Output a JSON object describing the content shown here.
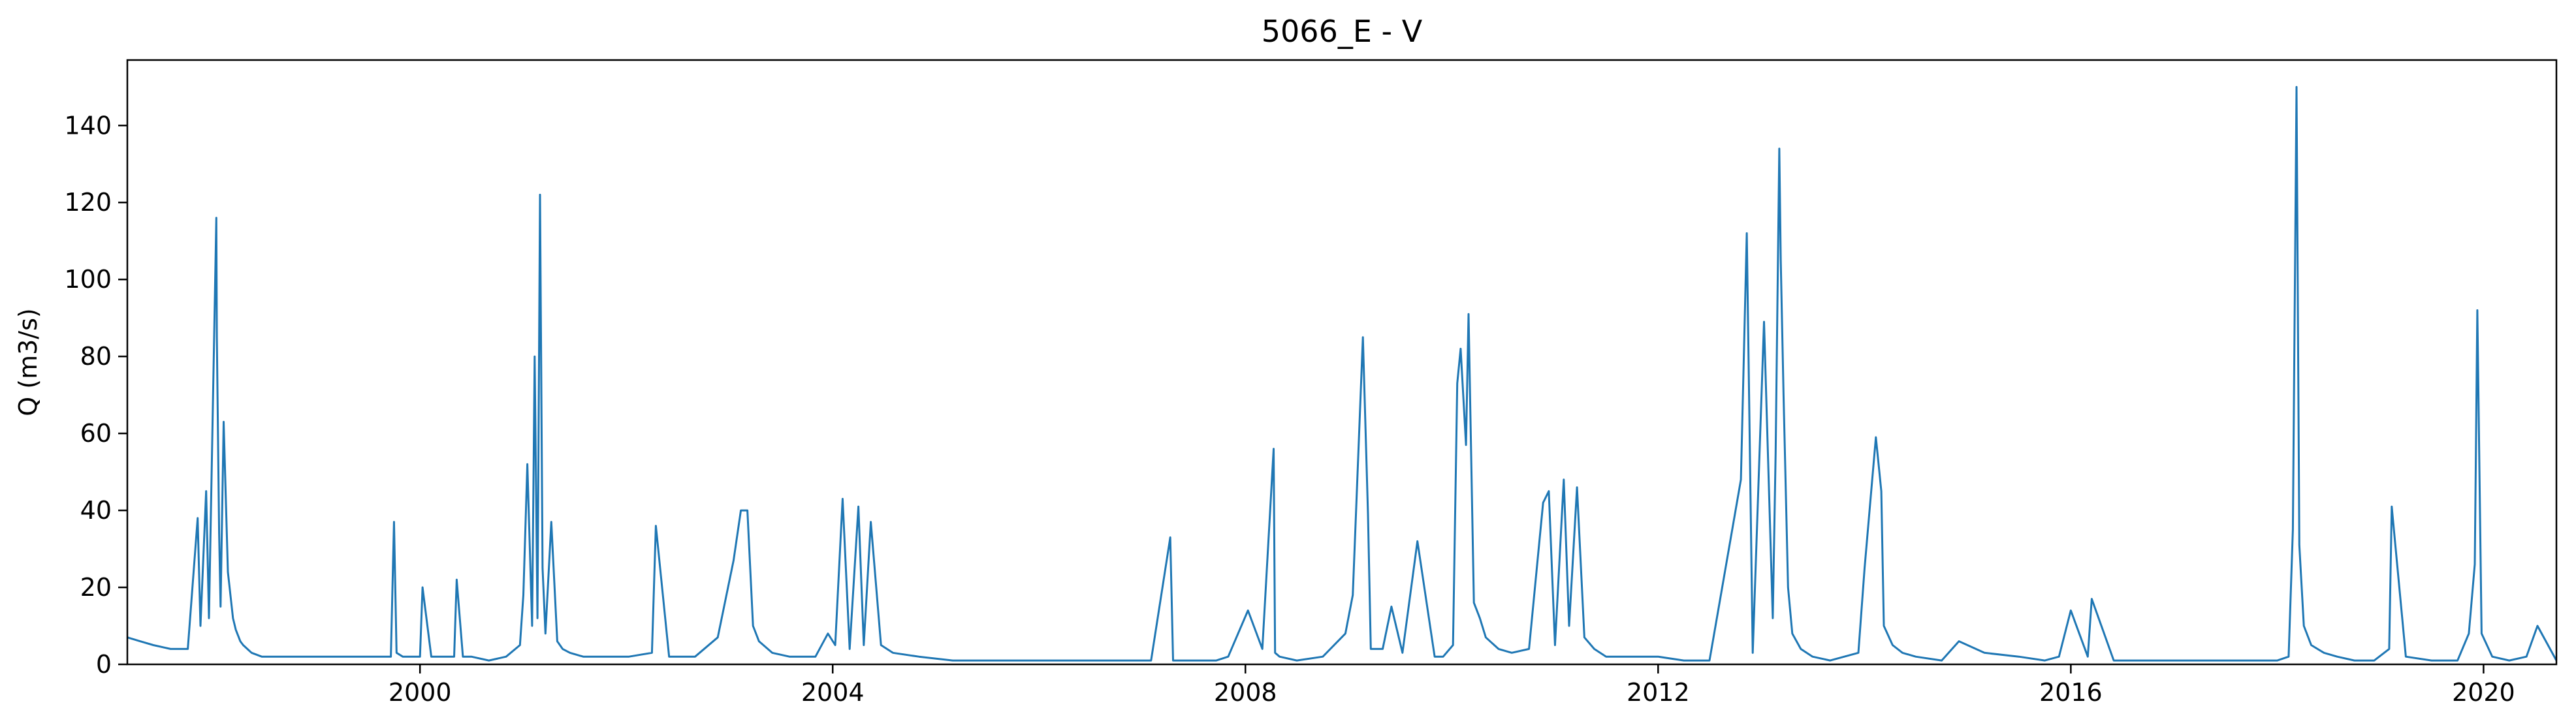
{
  "chart_data": {
    "type": "line",
    "title": "5066_E - V",
    "xlabel": "",
    "ylabel": "Q (m3/s)",
    "xlim": [
      "1997-03-01",
      "2020-09-15"
    ],
    "ylim": [
      0,
      157
    ],
    "x_ticks": [
      "2000",
      "2004",
      "2008",
      "2012",
      "2016",
      "2020"
    ],
    "y_ticks": [
      0,
      20,
      40,
      60,
      80,
      100,
      120,
      140
    ],
    "grid": false,
    "legend": "none",
    "line_color": "#1f77b4",
    "series": [
      {
        "name": "",
        "x": [
          "1997-03-01",
          "1997-04-15",
          "1997-06-01",
          "1997-08-01",
          "1997-10-01",
          "1997-11-05",
          "1997-11-15",
          "1997-12-05",
          "1997-12-15",
          "1998-01-10",
          "1998-01-12",
          "1998-01-20",
          "1998-01-25",
          "1998-02-05",
          "1998-02-20",
          "1998-03-10",
          "1998-03-20",
          "1998-04-05",
          "1998-04-15",
          "1998-05-15",
          "1998-06-20",
          "1998-08-01",
          "1998-10-01",
          "1999-01-15",
          "1999-04-01",
          "1999-07-01",
          "1999-09-20",
          "1999-10-01",
          "1999-10-10",
          "1999-11-01",
          "2000-01-01",
          "2000-01-10",
          "2000-02-10",
          "2000-05-01",
          "2000-05-10",
          "2000-06-01",
          "2000-07-01",
          "2000-09-01",
          "2000-11-01",
          "2000-12-20",
          "2001-01-01",
          "2001-01-15",
          "2001-02-01",
          "2001-02-10",
          "2001-02-20",
          "2001-03-01",
          "2001-03-10",
          "2001-03-20",
          "2001-04-10",
          "2001-05-01",
          "2001-05-20",
          "2001-06-15",
          "2001-08-01",
          "2001-10-01",
          "2002-01-10",
          "2002-04-01",
          "2002-04-15",
          "2002-06-01",
          "2002-09-01",
          "2002-11-20",
          "2003-01-15",
          "2003-02-10",
          "2003-03-05",
          "2003-03-25",
          "2003-04-15",
          "2003-06-01",
          "2003-08-01",
          "2003-11-01",
          "2003-12-15",
          "2004-01-10",
          "2004-02-05",
          "2004-03-01",
          "2004-04-01",
          "2004-04-20",
          "2004-05-15",
          "2004-06-20",
          "2004-08-01",
          "2004-11-01",
          "2005-03-01",
          "2005-07-01",
          "2005-11-01",
          "2006-04-01",
          "2006-08-01",
          "2006-12-01",
          "2007-02-01",
          "2007-04-10",
          "2007-04-20",
          "2007-06-01",
          "2007-09-20",
          "2007-11-01",
          "2008-01-10",
          "2008-03-01",
          "2008-04-10",
          "2008-04-15",
          "2008-05-01",
          "2008-07-01",
          "2008-10-01",
          "2008-12-20",
          "2009-01-15",
          "2009-02-20",
          "2009-03-10",
          "2009-03-20",
          "2009-05-01",
          "2009-06-01",
          "2009-07-10",
          "2009-09-01",
          "2009-11-01",
          "2009-12-01",
          "2010-01-05",
          "2010-01-20",
          "2010-02-01",
          "2010-02-20",
          "2010-03-01",
          "2010-03-20",
          "2010-04-10",
          "2010-05-01",
          "2010-06-15",
          "2010-08-01",
          "2010-10-01",
          "2010-11-20",
          "2010-12-10",
          "2011-01-01",
          "2011-02-01",
          "2011-02-20",
          "2011-03-20",
          "2011-04-15",
          "2011-05-20",
          "2011-07-01",
          "2011-10-01",
          "2012-01-01",
          "2012-04-01",
          "2012-07-01",
          "2012-10-20",
          "2012-11-10",
          "2012-12-01",
          "2013-01-10",
          "2013-02-10",
          "2013-02-20",
          "2013-03-05",
          "2013-03-10",
          "2013-03-20",
          "2013-04-05",
          "2013-04-20",
          "2013-05-20",
          "2013-07-01",
          "2013-09-01",
          "2013-12-10",
          "2014-01-01",
          "2014-02-10",
          "2014-03-01",
          "2014-03-10",
          "2014-04-10",
          "2014-05-15",
          "2014-07-01",
          "2014-10-01",
          "2014-12-01",
          "2015-03-01",
          "2015-07-01",
          "2015-10-01",
          "2015-11-20",
          "2016-01-01",
          "2016-03-01",
          "2016-03-15",
          "2016-06-01",
          "2016-09-01",
          "2016-12-01",
          "2017-03-01",
          "2017-07-01",
          "2017-11-01",
          "2018-01-01",
          "2018-02-10",
          "2018-02-25",
          "2018-03-10",
          "2018-03-20",
          "2018-04-05",
          "2018-05-01",
          "2018-06-15",
          "2018-08-01",
          "2018-10-01",
          "2018-12-10",
          "2019-02-01",
          "2019-02-10",
          "2019-04-01",
          "2019-07-01",
          "2019-10-01",
          "2019-11-10",
          "2019-12-01",
          "2019-12-10",
          "2019-12-25",
          "2020-02-01",
          "2020-04-01",
          "2020-06-01",
          "2020-07-10",
          "2020-09-15"
        ],
        "values": [
          7,
          6,
          5,
          4,
          4,
          38,
          10,
          45,
          12,
          116,
          85,
          34,
          15,
          63,
          24,
          12,
          9,
          6,
          5,
          3,
          2,
          2,
          2,
          2,
          2,
          2,
          2,
          37,
          3,
          2,
          2,
          20,
          2,
          2,
          22,
          2,
          2,
          1,
          2,
          5,
          18,
          52,
          10,
          80,
          12,
          122,
          25,
          8,
          37,
          6,
          4,
          3,
          2,
          2,
          2,
          3,
          36,
          2,
          2,
          7,
          27,
          40,
          40,
          10,
          6,
          3,
          2,
          2,
          8,
          5,
          43,
          4,
          41,
          5,
          37,
          5,
          3,
          2,
          1,
          1,
          1,
          1,
          1,
          1,
          1,
          33,
          1,
          1,
          1,
          2,
          14,
          4,
          56,
          3,
          2,
          1,
          2,
          8,
          18,
          85,
          39,
          4,
          4,
          15,
          3,
          32,
          2,
          2,
          5,
          73,
          82,
          57,
          91,
          16,
          12,
          7,
          4,
          3,
          4,
          42,
          45,
          5,
          48,
          10,
          46,
          7,
          4,
          2,
          2,
          2,
          1,
          1,
          48,
          112,
          3,
          89,
          12,
          55,
          134,
          105,
          70,
          20,
          8,
          4,
          2,
          1,
          3,
          25,
          59,
          45,
          10,
          5,
          3,
          2,
          1,
          6,
          3,
          2,
          1,
          2,
          14,
          2,
          17,
          1,
          1,
          1,
          1,
          1,
          1,
          1,
          2,
          35,
          150,
          31,
          10,
          5,
          3,
          2,
          1,
          1,
          4,
          41,
          2,
          1,
          1,
          8,
          26,
          92,
          8,
          2,
          1,
          2,
          10,
          1
        ]
      }
    ]
  }
}
